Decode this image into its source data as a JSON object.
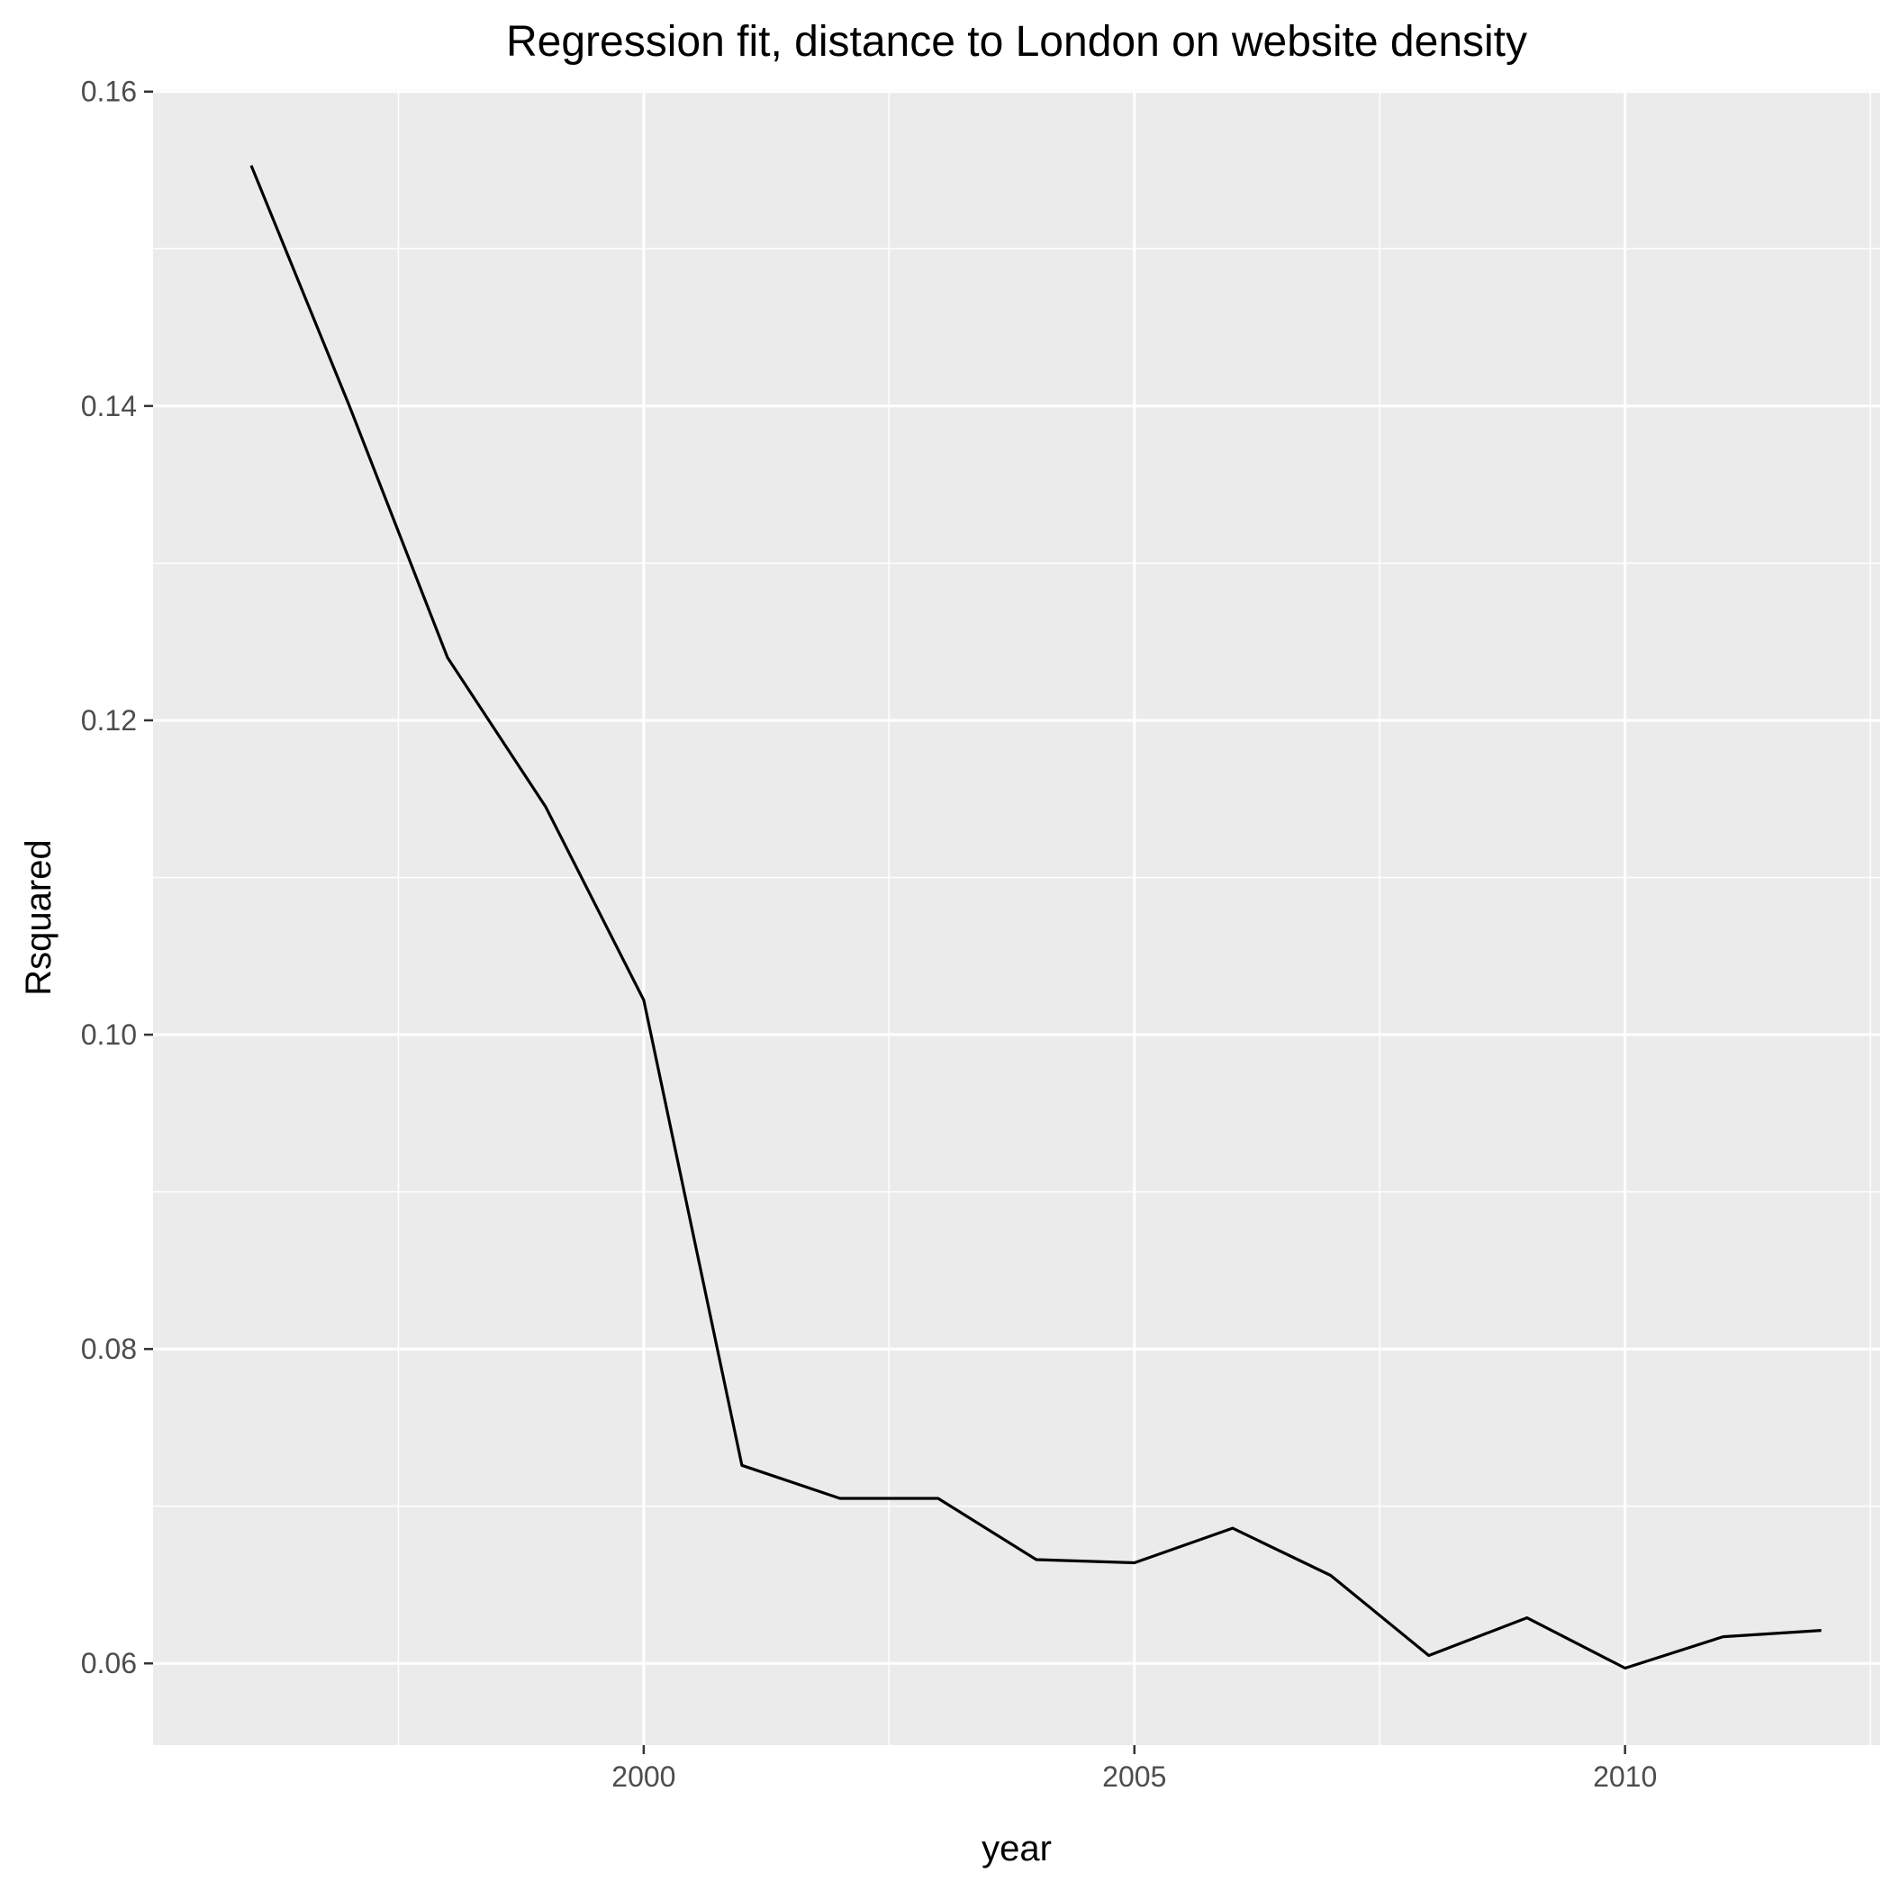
{
  "chart_data": {
    "type": "line",
    "title": "Regression fit, distance to London on website density",
    "xlabel": "year",
    "ylabel": "Rsquared",
    "x": [
      1996,
      1997,
      1998,
      1999,
      2000,
      2001,
      2002,
      2003,
      2004,
      2005,
      2006,
      2007,
      2008,
      2009,
      2010,
      2011,
      2012
    ],
    "series": [
      {
        "values": [
          0.1553,
          0.14,
          0.124,
          0.1145,
          0.1022,
          0.0726,
          0.0705,
          0.0705,
          0.0666,
          0.0664,
          0.0686,
          0.0656,
          0.0605,
          0.0629,
          0.0597,
          0.0617,
          0.0621
        ]
      }
    ],
    "xlim": [
      1995.0,
      2012.6
    ],
    "ylim": [
      0.0548,
      0.1601
    ],
    "xticks": [
      2000,
      2005,
      2010
    ],
    "xtick_labels": [
      "2000",
      "2005",
      "2010"
    ],
    "yticks": [
      0.06,
      0.08,
      0.1,
      0.12,
      0.14,
      0.16
    ],
    "ytick_labels": [
      "0.06",
      "0.08",
      "0.10",
      "0.12",
      "0.14",
      "0.16"
    ],
    "grid": true,
    "legend": "none",
    "colors": {
      "panel_background": "#EBEBEB",
      "grid": "#FFFFFF",
      "line": "#000000",
      "tick": "#333333"
    }
  }
}
